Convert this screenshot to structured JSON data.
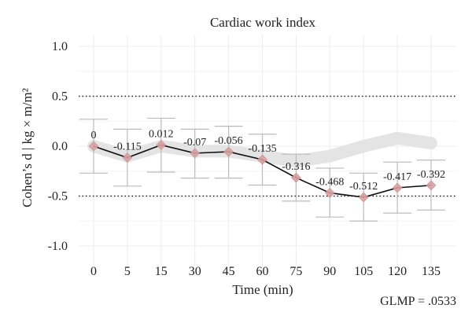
{
  "chart_data": {
    "type": "line",
    "title": "Cardiac work index",
    "xlabel": "Time (min)",
    "ylabel": "Cohen’s d | kg × m/m²",
    "categories": [
      "0",
      "5",
      "15",
      "30",
      "45",
      "60",
      "75",
      "90",
      "105",
      "120",
      "135"
    ],
    "series": [
      {
        "values": [
          0,
          -0.115,
          0.012,
          -0.07,
          -0.056,
          -0.135,
          -0.316,
          -0.468,
          -0.512,
          -0.417,
          -0.392
        ],
        "data_labels": [
          "0",
          "-0.115",
          "0.012",
          "-0.07",
          "-0.056",
          "-0.135",
          "-0.316",
          "-0.468",
          "-0.512",
          "-0.417",
          "-0.392"
        ],
        "error_low": [
          -0.27,
          -0.4,
          -0.26,
          -0.32,
          -0.32,
          -0.39,
          -0.55,
          -0.71,
          -0.75,
          -0.67,
          -0.64
        ],
        "error_high": [
          0.27,
          0.17,
          0.28,
          0.17,
          0.2,
          0.12,
          -0.08,
          -0.22,
          -0.27,
          -0.16,
          -0.14
        ]
      }
    ],
    "reference_band": [
      0,
      -0.1,
      0.0,
      -0.05,
      -0.05,
      -0.1,
      -0.15,
      -0.1,
      0.0,
      0.08,
      0.03
    ],
    "reference_lines": [
      0.5,
      -0.5
    ],
    "yticks": [
      1.0,
      0.5,
      0.0,
      -0.5,
      -1.0
    ],
    "ytick_labels": [
      "1.0",
      "0.5",
      "0.0",
      "-0.5",
      "-1.0"
    ],
    "ylim": [
      -1.15,
      1.1
    ],
    "grid": true,
    "legend": "none",
    "annotation": "GLMP = .0533",
    "colors": {
      "line": "#111111",
      "marker": "#d7a0a0",
      "error_bar": "#bbbbbb",
      "band": "#e4e4e4",
      "grid": "#ececec",
      "ref_line": "#222222"
    }
  }
}
